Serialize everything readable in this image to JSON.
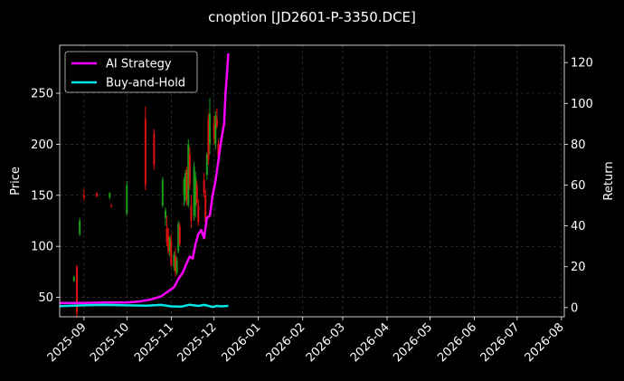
{
  "chart_data": {
    "type": "candlestick-line",
    "title": "cnoption [JD2601-P-3350.DCE]",
    "ylabel_left": "Price",
    "ylabel_right": "Return",
    "xlabel": "",
    "x_tick_labels": [
      "2025-09",
      "2025-10",
      "2025-11",
      "2025-12",
      "2026-01",
      "2026-02",
      "2026-03",
      "2026-04",
      "2026-05",
      "2026-06",
      "2026-07",
      "2026-08"
    ],
    "x_range": [
      "2025-08-15",
      "2026-08-03"
    ],
    "y_left_ticks": [
      50,
      100,
      150,
      200,
      250
    ],
    "y_left_range": [
      31,
      297
    ],
    "y_right_ticks": [
      0,
      20,
      40,
      60,
      80,
      100,
      120
    ],
    "y_right_range": [
      -4.5,
      128.5
    ],
    "grid": true,
    "legend": {
      "placement": "top-left",
      "entries": [
        "AI Strategy",
        "Buy-and-Hold"
      ]
    },
    "colors": {
      "background": "#000000",
      "up": "#1a9e1a",
      "down": "#e01010",
      "ai_strategy": "#ff00ff",
      "buy_and_hold": "#00e5e5",
      "grid": "#444444"
    },
    "candles": [
      {
        "date": "2025-08-25",
        "open": 66,
        "high": 71,
        "low": 65,
        "close": 70
      },
      {
        "date": "2025-08-27",
        "open": 80,
        "high": 82,
        "low": 30,
        "close": 35
      },
      {
        "date": "2025-08-29",
        "open": 112,
        "high": 128,
        "low": 110,
        "close": 125
      },
      {
        "date": "2025-09-01",
        "open": 150,
        "high": 156,
        "low": 145,
        "close": 148
      },
      {
        "date": "2025-09-10",
        "open": 152,
        "high": 153,
        "low": 148,
        "close": 149
      },
      {
        "date": "2025-09-19",
        "open": 148,
        "high": 153,
        "low": 146,
        "close": 152
      },
      {
        "date": "2025-09-20",
        "open": 140,
        "high": 142,
        "low": 138,
        "close": 139
      },
      {
        "date": "2025-10-01",
        "open": 132,
        "high": 164,
        "low": 130,
        "close": 160
      },
      {
        "date": "2025-10-14",
        "open": 225,
        "high": 237,
        "low": 155,
        "close": 160
      },
      {
        "date": "2025-10-20",
        "open": 210,
        "high": 215,
        "low": 175,
        "close": 180
      },
      {
        "date": "2025-10-26",
        "open": 140,
        "high": 168,
        "low": 138,
        "close": 165
      },
      {
        "date": "2025-10-28",
        "open": 128,
        "high": 138,
        "low": 120,
        "close": 135
      },
      {
        "date": "2025-10-29",
        "open": 118,
        "high": 130,
        "low": 100,
        "close": 104
      },
      {
        "date": "2025-10-30",
        "open": 110,
        "high": 118,
        "low": 92,
        "close": 95
      },
      {
        "date": "2025-10-31",
        "open": 95,
        "high": 110,
        "low": 90,
        "close": 108
      },
      {
        "date": "2025-11-01",
        "open": 105,
        "high": 112,
        "low": 80,
        "close": 82
      },
      {
        "date": "2025-11-03",
        "open": 80,
        "high": 95,
        "low": 76,
        "close": 92
      },
      {
        "date": "2025-11-04",
        "open": 90,
        "high": 98,
        "low": 70,
        "close": 75
      },
      {
        "date": "2025-11-05",
        "open": 74,
        "high": 90,
        "low": 72,
        "close": 86
      },
      {
        "date": "2025-11-06",
        "open": 95,
        "high": 125,
        "low": 93,
        "close": 122
      },
      {
        "date": "2025-11-07",
        "open": 120,
        "high": 123,
        "low": 100,
        "close": 102
      },
      {
        "date": "2025-11-10",
        "open": 150,
        "high": 168,
        "low": 140,
        "close": 165
      },
      {
        "date": "2025-11-11",
        "open": 145,
        "high": 175,
        "low": 143,
        "close": 172
      },
      {
        "date": "2025-11-12",
        "open": 175,
        "high": 178,
        "low": 140,
        "close": 145
      },
      {
        "date": "2025-11-13",
        "open": 140,
        "high": 205,
        "low": 138,
        "close": 200
      },
      {
        "date": "2025-11-14",
        "open": 190,
        "high": 197,
        "low": 155,
        "close": 160
      },
      {
        "date": "2025-11-15",
        "open": 140,
        "high": 150,
        "low": 118,
        "close": 125
      },
      {
        "date": "2025-11-17",
        "open": 130,
        "high": 183,
        "low": 125,
        "close": 178
      },
      {
        "date": "2025-11-18",
        "open": 140,
        "high": 173,
        "low": 128,
        "close": 168
      },
      {
        "date": "2025-11-19",
        "open": 160,
        "high": 165,
        "low": 140,
        "close": 143
      },
      {
        "date": "2025-11-20",
        "open": 140,
        "high": 146,
        "low": 120,
        "close": 124
      },
      {
        "date": "2025-11-24",
        "open": 165,
        "high": 172,
        "low": 148,
        "close": 152
      },
      {
        "date": "2025-11-25",
        "open": 150,
        "high": 155,
        "low": 120,
        "close": 124
      },
      {
        "date": "2025-11-26",
        "open": 170,
        "high": 192,
        "low": 165,
        "close": 190
      },
      {
        "date": "2025-11-27",
        "open": 225,
        "high": 230,
        "low": 180,
        "close": 185
      },
      {
        "date": "2025-11-28",
        "open": 200,
        "high": 245,
        "low": 190,
        "close": 230
      },
      {
        "date": "2025-12-01",
        "open": 220,
        "high": 228,
        "low": 200,
        "close": 205
      },
      {
        "date": "2025-12-02",
        "open": 200,
        "high": 232,
        "low": 195,
        "close": 228
      },
      {
        "date": "2025-12-03",
        "open": 225,
        "high": 235,
        "low": 215,
        "close": 218
      },
      {
        "date": "2025-12-04",
        "open": 200,
        "high": 205,
        "low": 185,
        "close": 188
      }
    ],
    "series": [
      {
        "name": "AI Strategy",
        "axis": "right",
        "points": [
          [
            "2025-08-15",
            2.2
          ],
          [
            "2025-09-01",
            2.3
          ],
          [
            "2025-09-15",
            2.5
          ],
          [
            "2025-10-01",
            2.5
          ],
          [
            "2025-10-10",
            3.0
          ],
          [
            "2025-10-18",
            4.0
          ],
          [
            "2025-10-25",
            5.5
          ],
          [
            "2025-10-30",
            8.0
          ],
          [
            "2025-11-03",
            10.0
          ],
          [
            "2025-11-06",
            14.0
          ],
          [
            "2025-11-09",
            17.0
          ],
          [
            "2025-11-12",
            22.0
          ],
          [
            "2025-11-14",
            25.0
          ],
          [
            "2025-11-16",
            24.0
          ],
          [
            "2025-11-18",
            31.0
          ],
          [
            "2025-11-20",
            36.0
          ],
          [
            "2025-11-22",
            38.0
          ],
          [
            "2025-11-24",
            34.0
          ],
          [
            "2025-11-26",
            44.0
          ],
          [
            "2025-11-28",
            45.0
          ],
          [
            "2025-11-30",
            55.0
          ],
          [
            "2025-12-02",
            62.0
          ],
          [
            "2025-12-04",
            72.0
          ],
          [
            "2025-12-06",
            82.0
          ],
          [
            "2025-12-08",
            90.0
          ],
          [
            "2025-12-09",
            105.0
          ],
          [
            "2025-12-10",
            114.0
          ],
          [
            "2025-12-11",
            124.5
          ]
        ]
      },
      {
        "name": "Buy-and-Hold",
        "axis": "right",
        "points": [
          [
            "2025-08-15",
            0.7
          ],
          [
            "2025-09-01",
            1.1
          ],
          [
            "2025-09-15",
            1.3
          ],
          [
            "2025-10-01",
            1.1
          ],
          [
            "2025-10-15",
            0.9
          ],
          [
            "2025-10-25",
            1.3
          ],
          [
            "2025-11-01",
            0.6
          ],
          [
            "2025-11-08",
            0.4
          ],
          [
            "2025-11-14",
            1.4
          ],
          [
            "2025-11-18",
            1.0
          ],
          [
            "2025-11-20",
            0.8
          ],
          [
            "2025-11-24",
            1.3
          ],
          [
            "2025-11-27",
            0.8
          ],
          [
            "2025-11-30",
            0.3
          ],
          [
            "2025-12-03",
            0.8
          ],
          [
            "2025-12-06",
            0.6
          ],
          [
            "2025-12-11",
            0.8
          ]
        ]
      }
    ]
  }
}
